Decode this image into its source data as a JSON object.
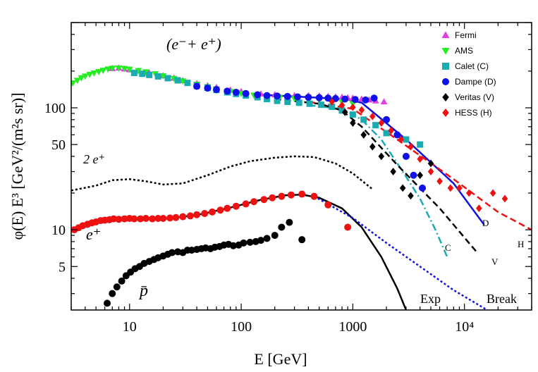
{
  "chart_data": {
    "type": "scatter",
    "title": "",
    "xlabel": "E  [GeV]",
    "ylabel": "φ(E) E³  [GeV²/(m²s sr)]",
    "xscale": "log",
    "yscale": "log",
    "xlim": [
      3,
      40000
    ],
    "ylim": [
      2.2,
      500
    ],
    "x_ticks": [
      {
        "value": 10,
        "label": "10"
      },
      {
        "value": 100,
        "label": "100"
      },
      {
        "value": 1000,
        "label": "1000"
      },
      {
        "value": 10000,
        "label": "10⁴"
      }
    ],
    "y_ticks": [
      {
        "value": 5,
        "label": "5"
      },
      {
        "value": 10,
        "label": "10"
      },
      {
        "value": 50,
        "label": "50"
      },
      {
        "value": 100,
        "label": "100"
      }
    ],
    "legend_position": "top-right",
    "annotations": {
      "electrons_positrons": "(e⁻+ e⁺)",
      "twice_positron": "2 e⁺",
      "positron": "e⁺",
      "antiproton": "p̄",
      "exp": "Exp",
      "break": "Break",
      "fit_C": "C",
      "fit_D": "D",
      "fit_V": "V",
      "fit_H": "H"
    },
    "series": [
      {
        "name": "Fermi",
        "label": "Fermi",
        "marker": "triangle-up",
        "color": "#e040e0",
        "points": [
          [
            7,
            210
          ],
          [
            8,
            212
          ],
          [
            9,
            208
          ],
          [
            10,
            205
          ],
          [
            12,
            200
          ],
          [
            15,
            193
          ],
          [
            20,
            183
          ],
          [
            25,
            175
          ],
          [
            30,
            167
          ],
          [
            40,
            158
          ],
          [
            50,
            152
          ],
          [
            60,
            147
          ],
          [
            80,
            140
          ],
          [
            100,
            136
          ],
          [
            150,
            130
          ],
          [
            200,
            128
          ],
          [
            300,
            126
          ],
          [
            400,
            126
          ],
          [
            500,
            125
          ],
          [
            600,
            124
          ],
          [
            700,
            123
          ],
          [
            800,
            122
          ],
          [
            900,
            121
          ],
          [
            1000,
            120
          ],
          [
            1200,
            118
          ],
          [
            1400,
            116
          ],
          [
            1600,
            114
          ],
          [
            1900,
            112
          ]
        ]
      },
      {
        "name": "AMS",
        "label": "AMS",
        "marker": "triangle-down",
        "color": "#22ee22",
        "points": [
          [
            3.1,
            160
          ],
          [
            3.4,
            168
          ],
          [
            3.7,
            176
          ],
          [
            4,
            182
          ],
          [
            4.4,
            188
          ],
          [
            4.8,
            193
          ],
          [
            5.3,
            198
          ],
          [
            5.8,
            203
          ],
          [
            6.4,
            208
          ],
          [
            7,
            211
          ],
          [
            8,
            212
          ],
          [
            9,
            210
          ],
          [
            10,
            207
          ],
          [
            12,
            202
          ],
          [
            14,
            197
          ],
          [
            17,
            190
          ],
          [
            20,
            183
          ],
          [
            25,
            174
          ],
          [
            30,
            166
          ],
          [
            40,
            156
          ],
          [
            50,
            149
          ],
          [
            60,
            143
          ],
          [
            80,
            136
          ],
          [
            100,
            131
          ],
          [
            130,
            127
          ],
          [
            170,
            124
          ],
          [
            220,
            121
          ],
          [
            300,
            119
          ],
          [
            400,
            117
          ],
          [
            500,
            116
          ],
          [
            650,
            114
          ],
          [
            800,
            112
          ],
          [
            1000,
            108
          ]
        ]
      },
      {
        "name": "Calet (C)",
        "label": "Calet  (C)",
        "marker": "square",
        "color": "#1aabb0",
        "points": [
          [
            11,
            193
          ],
          [
            13,
            190
          ],
          [
            15,
            186
          ],
          [
            18,
            181
          ],
          [
            22,
            175
          ],
          [
            27,
            168
          ],
          [
            33,
            160
          ],
          [
            40,
            152
          ],
          [
            50,
            146
          ],
          [
            60,
            140
          ],
          [
            75,
            134
          ],
          [
            90,
            130
          ],
          [
            110,
            126
          ],
          [
            140,
            122
          ],
          [
            170,
            118
          ],
          [
            210,
            114
          ],
          [
            260,
            112
          ],
          [
            330,
            110
          ],
          [
            410,
            108
          ],
          [
            520,
            106
          ],
          [
            650,
            102
          ],
          [
            800,
            95
          ],
          [
            1000,
            88
          ],
          [
            1250,
            80
          ],
          [
            1600,
            72
          ],
          [
            2000,
            62
          ],
          [
            3000,
            55
          ],
          [
            4000,
            50
          ]
        ]
      },
      {
        "name": "Dampe (D)",
        "label": "Dampe (D)",
        "marker": "circle",
        "color": "#1010e8",
        "points": [
          [
            40,
            150
          ],
          [
            50,
            145
          ],
          [
            60,
            141
          ],
          [
            75,
            137
          ],
          [
            90,
            134
          ],
          [
            110,
            131
          ],
          [
            140,
            128
          ],
          [
            170,
            126
          ],
          [
            210,
            125
          ],
          [
            260,
            124
          ],
          [
            320,
            123
          ],
          [
            400,
            122
          ],
          [
            500,
            121
          ],
          [
            600,
            120
          ],
          [
            700,
            119
          ],
          [
            850,
            118
          ],
          [
            1050,
            117
          ],
          [
            1300,
            116
          ],
          [
            1550,
            120
          ],
          [
            2000,
            80
          ],
          [
            2500,
            60
          ],
          [
            3000,
            40
          ],
          [
            3500,
            28
          ],
          [
            4200,
            22
          ]
        ]
      },
      {
        "name": "Veritas (V)",
        "label": "Veritas (V)",
        "marker": "diamond",
        "color": "#000000",
        "points": [
          [
            850,
            92
          ],
          [
            1000,
            75
          ],
          [
            1250,
            60
          ],
          [
            1500,
            48
          ],
          [
            1800,
            40
          ],
          [
            2300,
            30
          ],
          [
            2800,
            22
          ],
          [
            3300,
            19
          ],
          [
            4000,
            28
          ],
          [
            5000,
            35
          ]
        ]
      },
      {
        "name": "HESS (H)",
        "label": "HESS  (H)",
        "marker": "diamond",
        "color": "#ee1111",
        "points": [
          [
            650,
            112
          ],
          [
            800,
            105
          ],
          [
            1000,
            101
          ],
          [
            1200,
            96
          ],
          [
            1500,
            85
          ],
          [
            1800,
            75
          ],
          [
            2200,
            65
          ],
          [
            2700,
            55
          ],
          [
            3300,
            48
          ],
          [
            4000,
            38
          ],
          [
            5000,
            30
          ],
          [
            6000,
            25
          ],
          [
            7500,
            22
          ],
          [
            9000,
            22
          ],
          [
            11000,
            20
          ],
          [
            13500,
            15
          ],
          [
            18000,
            20
          ],
          [
            23000,
            18
          ]
        ]
      },
      {
        "name": "Positrons e+",
        "label": "e⁺",
        "marker": "circle",
        "color": "#ee1111",
        "points": [
          [
            3.2,
            10.0
          ],
          [
            3.5,
            10.4
          ],
          [
            3.8,
            10.8
          ],
          [
            4.2,
            11.1
          ],
          [
            4.6,
            11.4
          ],
          [
            5,
            11.6
          ],
          [
            5.5,
            11.9
          ],
          [
            6,
            12.0
          ],
          [
            6.6,
            12.1
          ],
          [
            7.2,
            12.3
          ],
          [
            8,
            12.2
          ],
          [
            9,
            12.3
          ],
          [
            10,
            12.4
          ],
          [
            11,
            12.3
          ],
          [
            12.5,
            12.3
          ],
          [
            14,
            12.4
          ],
          [
            16,
            12.3
          ],
          [
            18,
            12.4
          ],
          [
            20,
            12.4
          ],
          [
            23,
            12.5
          ],
          [
            26,
            12.6
          ],
          [
            30,
            12.8
          ],
          [
            35,
            13.0
          ],
          [
            40,
            13.3
          ],
          [
            47,
            13.6
          ],
          [
            55,
            14.0
          ],
          [
            65,
            14.5
          ],
          [
            75,
            15.0
          ],
          [
            90,
            15.6
          ],
          [
            110,
            16.3
          ],
          [
            130,
            17.0
          ],
          [
            160,
            17.7
          ],
          [
            190,
            18.3
          ],
          [
            230,
            18.8
          ],
          [
            280,
            19.3
          ],
          [
            350,
            19.6
          ],
          [
            450,
            18.8
          ],
          [
            600,
            16.0
          ],
          [
            900,
            10.5
          ]
        ]
      },
      {
        "name": "Antiprotons",
        "label": "p̄",
        "marker": "circle",
        "color": "#000000",
        "points": [
          [
            6.3,
            2.5
          ],
          [
            7,
            3.0
          ],
          [
            7.7,
            3.4
          ],
          [
            8.5,
            3.8
          ],
          [
            9.3,
            4.2
          ],
          [
            10.2,
            4.5
          ],
          [
            11.2,
            4.8
          ],
          [
            12.3,
            5.0
          ],
          [
            13.5,
            5.3
          ],
          [
            15,
            5.5
          ],
          [
            16.5,
            5.7
          ],
          [
            18,
            5.9
          ],
          [
            20,
            6.1
          ],
          [
            22,
            6.3
          ],
          [
            24,
            6.5
          ],
          [
            27,
            6.6
          ],
          [
            30,
            6.5
          ],
          [
            33,
            6.8
          ],
          [
            36,
            6.8
          ],
          [
            40,
            6.9
          ],
          [
            44,
            7.0
          ],
          [
            48,
            7.1
          ],
          [
            53,
            7.0
          ],
          [
            58,
            7.2
          ],
          [
            64,
            7.3
          ],
          [
            70,
            7.5
          ],
          [
            77,
            7.6
          ],
          [
            85,
            7.4
          ],
          [
            95,
            7.5
          ],
          [
            105,
            7.8
          ],
          [
            120,
            7.9
          ],
          [
            135,
            8.0
          ],
          [
            150,
            8.2
          ],
          [
            170,
            8.5
          ],
          [
            200,
            9.0
          ],
          [
            230,
            10.5
          ],
          [
            270,
            11.5
          ],
          [
            350,
            8.3
          ]
        ]
      }
    ],
    "lines": [
      {
        "name": "2 e+ model",
        "style": "dotted",
        "color": "#000000",
        "points": [
          [
            3,
            21
          ],
          [
            5,
            23
          ],
          [
            7,
            25.5
          ],
          [
            10,
            26
          ],
          [
            14,
            25
          ],
          [
            20,
            23.5
          ],
          [
            30,
            24
          ],
          [
            50,
            28
          ],
          [
            80,
            33
          ],
          [
            120,
            36.5
          ],
          [
            200,
            39
          ],
          [
            300,
            40
          ],
          [
            450,
            39.5
          ],
          [
            700,
            35
          ],
          [
            1000,
            29
          ],
          [
            1500,
            21.5
          ]
        ]
      },
      {
        "name": "e+ fit",
        "style": "solid",
        "color": "#000000",
        "points": [
          [
            3,
            10.0
          ],
          [
            5,
            11.6
          ],
          [
            7,
            12.1
          ],
          [
            10,
            12.2
          ],
          [
            20,
            12.3
          ],
          [
            40,
            13.2
          ],
          [
            80,
            15.2
          ],
          [
            150,
            17.6
          ],
          [
            250,
            19.2
          ],
          [
            350,
            19.4
          ],
          [
            500,
            18.3
          ],
          [
            800,
            15.0
          ],
          [
            1200,
            10.5
          ],
          [
            1800,
            6.0
          ],
          [
            2500,
            3.3
          ],
          [
            3000,
            2.2
          ]
        ]
      },
      {
        "name": "Break",
        "style": "dotted",
        "color": "#1010e0",
        "points": [
          [
            450,
            18.8
          ],
          [
            1000,
            12.5
          ],
          [
            2000,
            7.8
          ],
          [
            4000,
            5.0
          ],
          [
            8000,
            3.2
          ],
          [
            16000,
            2.2
          ]
        ]
      },
      {
        "name": "Fit C",
        "style": "dashdot",
        "color": "#1aabb0",
        "points": [
          [
            400,
            105
          ],
          [
            800,
            98
          ],
          [
            1200,
            80
          ],
          [
            1800,
            55
          ],
          [
            2800,
            30
          ],
          [
            4000,
            18
          ],
          [
            5500,
            10
          ],
          [
            7000,
            6
          ]
        ]
      },
      {
        "name": "Fit D",
        "style": "solid",
        "color": "#1010e0",
        "points": [
          [
            150,
            128
          ],
          [
            500,
            121
          ],
          [
            900,
            117
          ],
          [
            1200,
            110
          ],
          [
            3000,
            55
          ],
          [
            8000,
            24
          ],
          [
            15000,
            11
          ]
        ]
      },
      {
        "name": "Fit V",
        "style": "dashed",
        "color": "#000000",
        "points": [
          [
            200,
            118
          ],
          [
            500,
            108
          ],
          [
            800,
            95
          ],
          [
            1200,
            70
          ],
          [
            2500,
            34
          ],
          [
            6000,
            15
          ],
          [
            13000,
            6.5
          ]
        ]
      },
      {
        "name": "Fit H",
        "style": "dashed",
        "color": "#ee1111",
        "points": [
          [
            400,
            112
          ],
          [
            1000,
            98
          ],
          [
            2500,
            55
          ],
          [
            8000,
            26
          ],
          [
            20000,
            14
          ],
          [
            40000,
            10
          ]
        ]
      }
    ]
  }
}
